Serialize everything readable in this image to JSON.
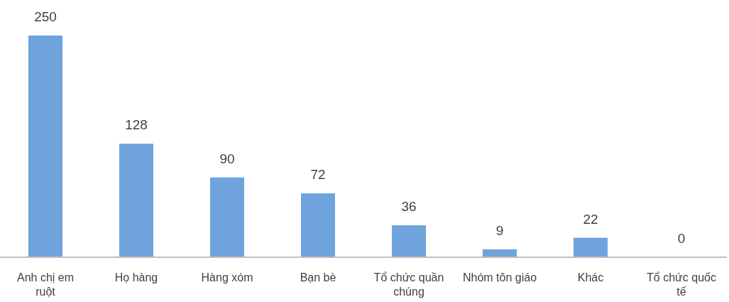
{
  "chart_data": {
    "type": "bar",
    "categories": [
      "Anh chị em ruột",
      "Họ hàng",
      "Hàng xóm",
      "Bạn bè",
      "Tổ chức quần chúng",
      "Nhóm tôn giáo",
      "Khác",
      "Tổ chức quốc tế"
    ],
    "values": [
      250,
      128,
      90,
      72,
      36,
      9,
      22,
      0
    ],
    "color": "#6fa3dc",
    "data_labels": true
  }
}
